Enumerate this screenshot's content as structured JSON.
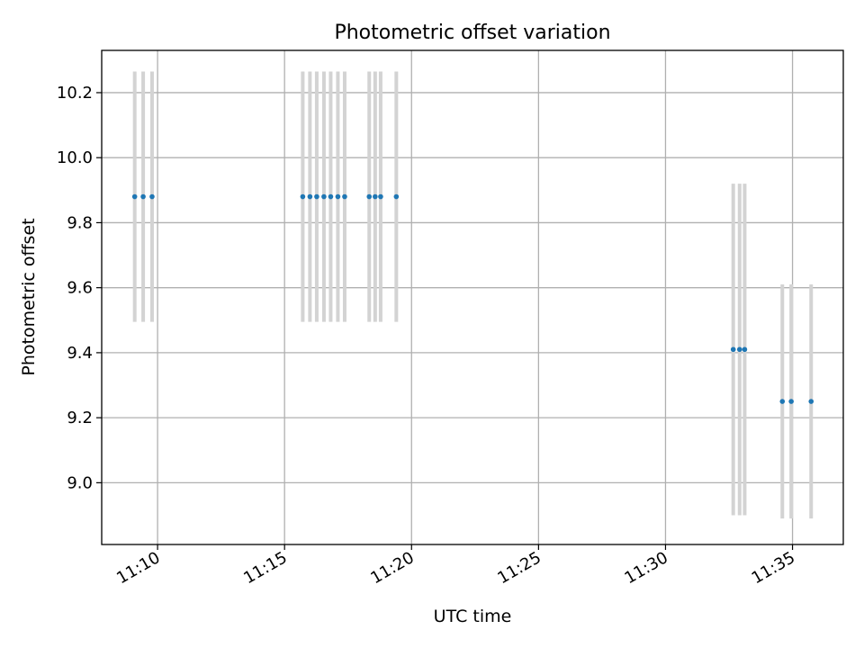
{
  "chart_data": {
    "type": "scatter",
    "title": "Photometric offset variation",
    "xlabel": "UTC time",
    "ylabel": "Photometric offset",
    "x_unit": "minutes",
    "xlim": [
      "11:07:48",
      "11:37:00"
    ],
    "ylim": [
      8.81,
      10.33
    ],
    "x_ticks": [
      "11:10",
      "11:15",
      "11:20",
      "11:25",
      "11:30",
      "11:35"
    ],
    "y_ticks": [
      "9.0",
      "9.2",
      "9.4",
      "9.6",
      "9.8",
      "10.0",
      "10.2"
    ],
    "grid": true,
    "legend": "none",
    "colors": {
      "point": "#1f77b4",
      "errorbar": "#d3d3d3",
      "grid": "#b0b0b0",
      "axes": "#000000"
    },
    "series": [
      {
        "points": [
          {
            "x": "11:09:06",
            "y": 9.88,
            "err": 0.385
          },
          {
            "x": "11:09:26",
            "y": 9.88,
            "err": 0.385
          },
          {
            "x": "11:09:47",
            "y": 9.88,
            "err": 0.385
          },
          {
            "x": "11:15:43",
            "y": 9.88,
            "err": 0.385
          },
          {
            "x": "11:16:00",
            "y": 9.88,
            "err": 0.385
          },
          {
            "x": "11:16:16",
            "y": 9.88,
            "err": 0.385
          },
          {
            "x": "11:16:33",
            "y": 9.88,
            "err": 0.385
          },
          {
            "x": "11:16:49",
            "y": 9.88,
            "err": 0.385
          },
          {
            "x": "11:17:06",
            "y": 9.88,
            "err": 0.385
          },
          {
            "x": "11:17:22",
            "y": 9.88,
            "err": 0.385
          },
          {
            "x": "11:18:20",
            "y": 9.88,
            "err": 0.385
          },
          {
            "x": "11:18:34",
            "y": 9.88,
            "err": 0.385
          },
          {
            "x": "11:18:47",
            "y": 9.88,
            "err": 0.385
          },
          {
            "x": "11:19:24",
            "y": 9.88,
            "err": 0.385
          },
          {
            "x": "11:32:40",
            "y": 9.41,
            "err": 0.51
          },
          {
            "x": "11:32:55",
            "y": 9.41,
            "err": 0.51
          },
          {
            "x": "11:33:07",
            "y": 9.41,
            "err": 0.51
          },
          {
            "x": "11:34:36",
            "y": 9.25,
            "err": 0.36
          },
          {
            "x": "11:34:57",
            "y": 9.25,
            "err": 0.36
          },
          {
            "x": "11:35:44",
            "y": 9.25,
            "err": 0.36
          }
        ]
      }
    ]
  }
}
